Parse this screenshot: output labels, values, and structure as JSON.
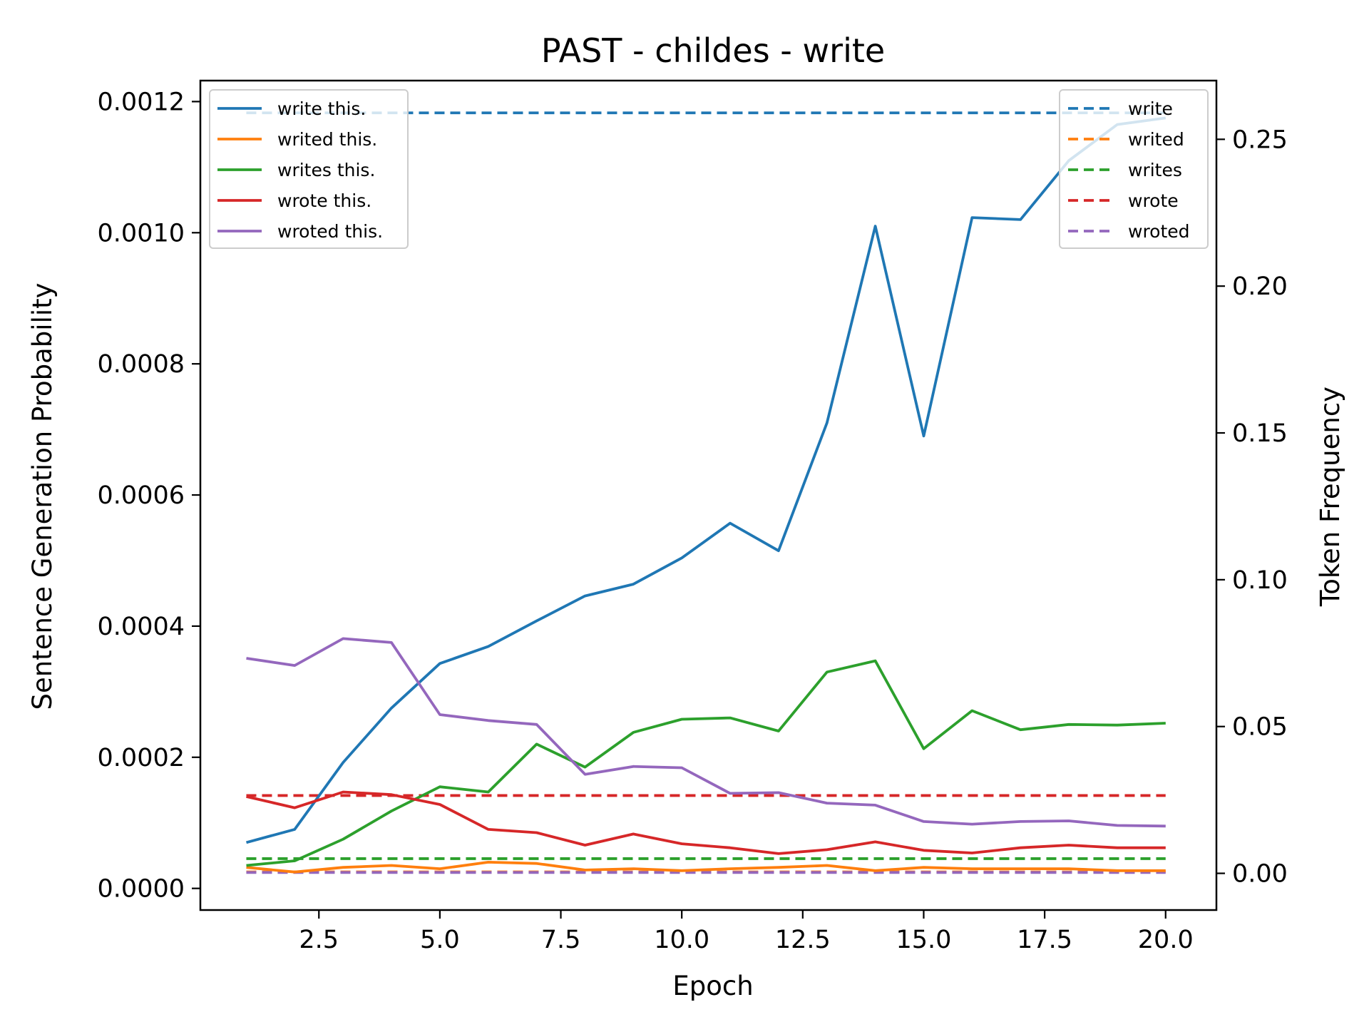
{
  "chart_data": {
    "type": "line",
    "title": "PAST - childes - write",
    "xlabel": "Epoch",
    "ylabel": "Sentence Generation Probability",
    "y2label": "Token Frequency",
    "x": [
      1,
      2,
      3,
      4,
      5,
      6,
      7,
      8,
      9,
      10,
      11,
      12,
      13,
      14,
      15,
      16,
      17,
      18,
      19,
      20
    ],
    "xlim": [
      0.05,
      21.05
    ],
    "ylim": [
      -3.3e-05,
      0.001232
    ],
    "y2lim": [
      -0.0125,
      0.27
    ],
    "xticks": [
      "2.5",
      "5.0",
      "7.5",
      "10.0",
      "12.5",
      "15.0",
      "17.5",
      "20.0"
    ],
    "xtick_values": [
      2.5,
      5.0,
      7.5,
      10.0,
      12.5,
      15.0,
      17.5,
      20.0
    ],
    "yticks": [
      "0.0000",
      "0.0002",
      "0.0004",
      "0.0006",
      "0.0008",
      "0.0010",
      "0.0012"
    ],
    "ytick_values": [
      0,
      0.0002,
      0.0004,
      0.0006,
      0.0008,
      0.001,
      0.0012
    ],
    "y2ticks": [
      "0.00",
      "0.05",
      "0.10",
      "0.15",
      "0.20",
      "0.25"
    ],
    "y2tick_values": [
      0,
      0.05,
      0.1,
      0.15,
      0.2,
      0.25
    ],
    "legend_left_position": "upper-left",
    "legend_right_position": "upper-right",
    "series": [
      {
        "name": "write this.",
        "color": "#1f77b4",
        "values": [
          7e-05,
          9e-05,
          0.000192,
          0.000275,
          0.000343,
          0.000369,
          0.000408,
          0.000446,
          0.000464,
          0.000504,
          0.000557,
          0.000515,
          0.00071,
          0.00101,
          0.00069,
          0.001023,
          0.00102,
          0.00111,
          0.001165,
          0.001175
        ]
      },
      {
        "name": "writed this.",
        "color": "#ff7f0e",
        "values": [
          3.2e-05,
          2.5e-05,
          3.2e-05,
          3.5e-05,
          3e-05,
          4e-05,
          3.8e-05,
          2.8e-05,
          3e-05,
          2.7e-05,
          3e-05,
          3.2e-05,
          3.5e-05,
          2.7e-05,
          3.2e-05,
          3e-05,
          3e-05,
          3e-05,
          2.7e-05,
          2.7e-05
        ]
      },
      {
        "name": "writes this.",
        "color": "#2ca02c",
        "values": [
          3.5e-05,
          4.2e-05,
          7.5e-05,
          0.000118,
          0.000155,
          0.000147,
          0.00022,
          0.000185,
          0.000238,
          0.000258,
          0.00026,
          0.00024,
          0.00033,
          0.000347,
          0.000213,
          0.000271,
          0.000242,
          0.00025,
          0.000249,
          0.000252
        ]
      },
      {
        "name": "wrote this.",
        "color": "#d62728",
        "values": [
          0.00014,
          0.000123,
          0.000147,
          0.000143,
          0.000128,
          9e-05,
          8.5e-05,
          6.6e-05,
          8.3e-05,
          6.8e-05,
          6.2e-05,
          5.3e-05,
          5.9e-05,
          7.1e-05,
          5.8e-05,
          5.4e-05,
          6.2e-05,
          6.6e-05,
          6.2e-05,
          6.2e-05
        ]
      },
      {
        "name": "wroted this.",
        "color": "#9467bd",
        "values": [
          0.000351,
          0.00034,
          0.000381,
          0.000375,
          0.000265,
          0.000256,
          0.00025,
          0.000174,
          0.000186,
          0.000184,
          0.000145,
          0.000146,
          0.00013,
          0.000127,
          0.000102,
          9.8e-05,
          0.000102,
          0.000103,
          9.6e-05,
          9.5e-05
        ]
      }
    ],
    "token_frequency_series": [
      {
        "name": "write",
        "color": "#1f77b4",
        "value": 0.259
      },
      {
        "name": "writed",
        "color": "#ff7f0e",
        "value": 0.0005
      },
      {
        "name": "writes",
        "color": "#2ca02c",
        "value": 0.005
      },
      {
        "name": "wrote",
        "color": "#d62728",
        "value": 0.0265
      },
      {
        "name": "wroted",
        "color": "#9467bd",
        "value": 0.0003
      }
    ]
  }
}
